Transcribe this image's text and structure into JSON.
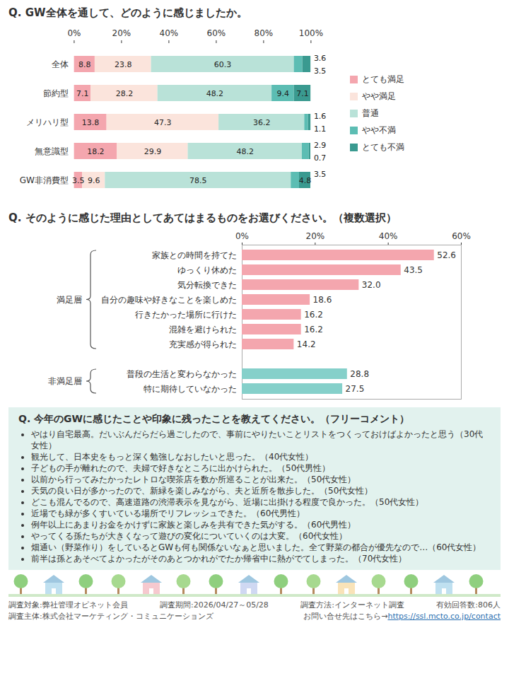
{
  "chart_data": [
    {
      "type": "bar",
      "title": "Q. GW全体を通して、どのように感じましたか。",
      "orientation": "horizontal",
      "stacked": true,
      "data_labels": true,
      "legend": "right",
      "categories": [
        "全体",
        "節約型",
        "メリハリ型",
        "無意識型",
        "GW非消費型"
      ],
      "series": [
        {
          "name": "とても満足",
          "color": "#f4a6ae",
          "values": [
            8.8,
            7.1,
            13.8,
            18.2,
            3.5
          ]
        },
        {
          "name": "やや満足",
          "color": "#fbe4dc",
          "values": [
            23.8,
            28.2,
            47.3,
            29.9,
            9.6
          ]
        },
        {
          "name": "普通",
          "color": "#b9e2d8",
          "values": [
            60.3,
            48.2,
            36.2,
            48.2,
            78.5
          ]
        },
        {
          "name": "やや不満",
          "color": "#5cbdb3",
          "values": [
            3.6,
            9.4,
            1.6,
            2.9,
            3.5
          ]
        },
        {
          "name": "とても不満",
          "color": "#3a9a90",
          "values": [
            3.5,
            7.1,
            1.1,
            0.7,
            4.8
          ]
        }
      ],
      "xlim": [
        0,
        100
      ],
      "xticks": [
        {
          "value": 0,
          "label": "0%"
        },
        {
          "value": 20,
          "label": "20%"
        },
        {
          "value": 40,
          "label": "40%"
        },
        {
          "value": 60,
          "label": "60%"
        },
        {
          "value": 80,
          "label": "80%"
        },
        {
          "value": 100,
          "label": "100%"
        }
      ]
    },
    {
      "type": "bar",
      "title": "Q. そのように感じた理由としてあてはまるものをお選びください。（複数選択）",
      "orientation": "horizontal",
      "data_labels": true,
      "categories": [
        "家族との時間を持てた",
        "ゆっくり休めた",
        "気分転換できた",
        "自分の趣味や好きなことを楽しめた",
        "行きたかった場所に行けた",
        "混雑を避けられた",
        "充実感が得られた",
        "普段の生活と変わらなかった",
        "特に期待していなかった"
      ],
      "series": [
        {
          "name": "満足層",
          "color": "#f4a6ae",
          "values": [
            52.6,
            43.5,
            32.0,
            18.6,
            16.2,
            16.2,
            14.2,
            null,
            null
          ],
          "value_labels": [
            "52.6",
            "43.5",
            "32.0",
            "18.6",
            "16.2",
            "16.2",
            "14.2",
            null,
            null
          ]
        },
        {
          "name": "非満足層",
          "color": "#85d0ca",
          "values": [
            null,
            null,
            null,
            null,
            null,
            null,
            null,
            28.8,
            27.5
          ],
          "value_labels": [
            null,
            null,
            null,
            null,
            null,
            null,
            null,
            "28.8",
            "27.5"
          ]
        }
      ],
      "xlim": [
        0,
        60
      ],
      "xticks": [
        {
          "value": 0,
          "label": "0%"
        },
        {
          "value": 20,
          "label": "20%"
        },
        {
          "value": 40,
          "label": "40%"
        },
        {
          "value": 60,
          "label": "60%"
        }
      ]
    }
  ],
  "comments": {
    "title": "Q. 今年のGWに感じたことや印象に残ったことを教えてください。（フリーコメント）",
    "items": [
      "やはり自宅最高。だいぶんだらだら過ごしたので、事前にやりたいことリストをつくっておけばよかったと思う（30代女性）",
      "観光して、日本史をもっと深く勉強しなおしたいと思った。（40代女性）",
      "子どもの手が離れたので、夫婦で好きなところに出かけられた。（50代男性）",
      "以前から行ってみたかったレトロな喫茶店を数か所巡ることが出来た。（50代女性）",
      "天気の良い日が多かったので、新緑を楽しみながら、夫と近所を散歩した。（50代女性）",
      "どこも混んでるので、高速道路の渋滞表示を見ながら、近場に出掛ける程度で良かった。（50代女性）",
      "近場でも緑が多くすいている場所でリフレッシュできた。（60代男性）",
      "例年以上にあまりお金をかけずに家族と楽しみを共有できた気がする。（60代男性）",
      "やってくる孫たちが大きくなって遊びの変化についていくのは大変。（60代女性）",
      "畑通い（野菜作り）をしているとGWも何も関係ないなぁと思いました。全て野菜の都合が優先なので…（60代女性）",
      "前半は孫とあそべてよかったがそのあとつかれがでたか帰省中に熱がでてしまった。（70代女性）"
    ]
  },
  "footer": {
    "items": [
      "調査対象:弊社管理オピネット会員",
      "調査期間:2026/04/27～05/28",
      "調査方法:インターネット調査",
      "有効回答数:806人"
    ],
    "sponsor": "調査主体:株式会社マーケティング・コミュニケーションズ",
    "contact": "お問い合せ先はこちら→",
    "url": "https://ssl.mcto.co.jp/contact"
  }
}
